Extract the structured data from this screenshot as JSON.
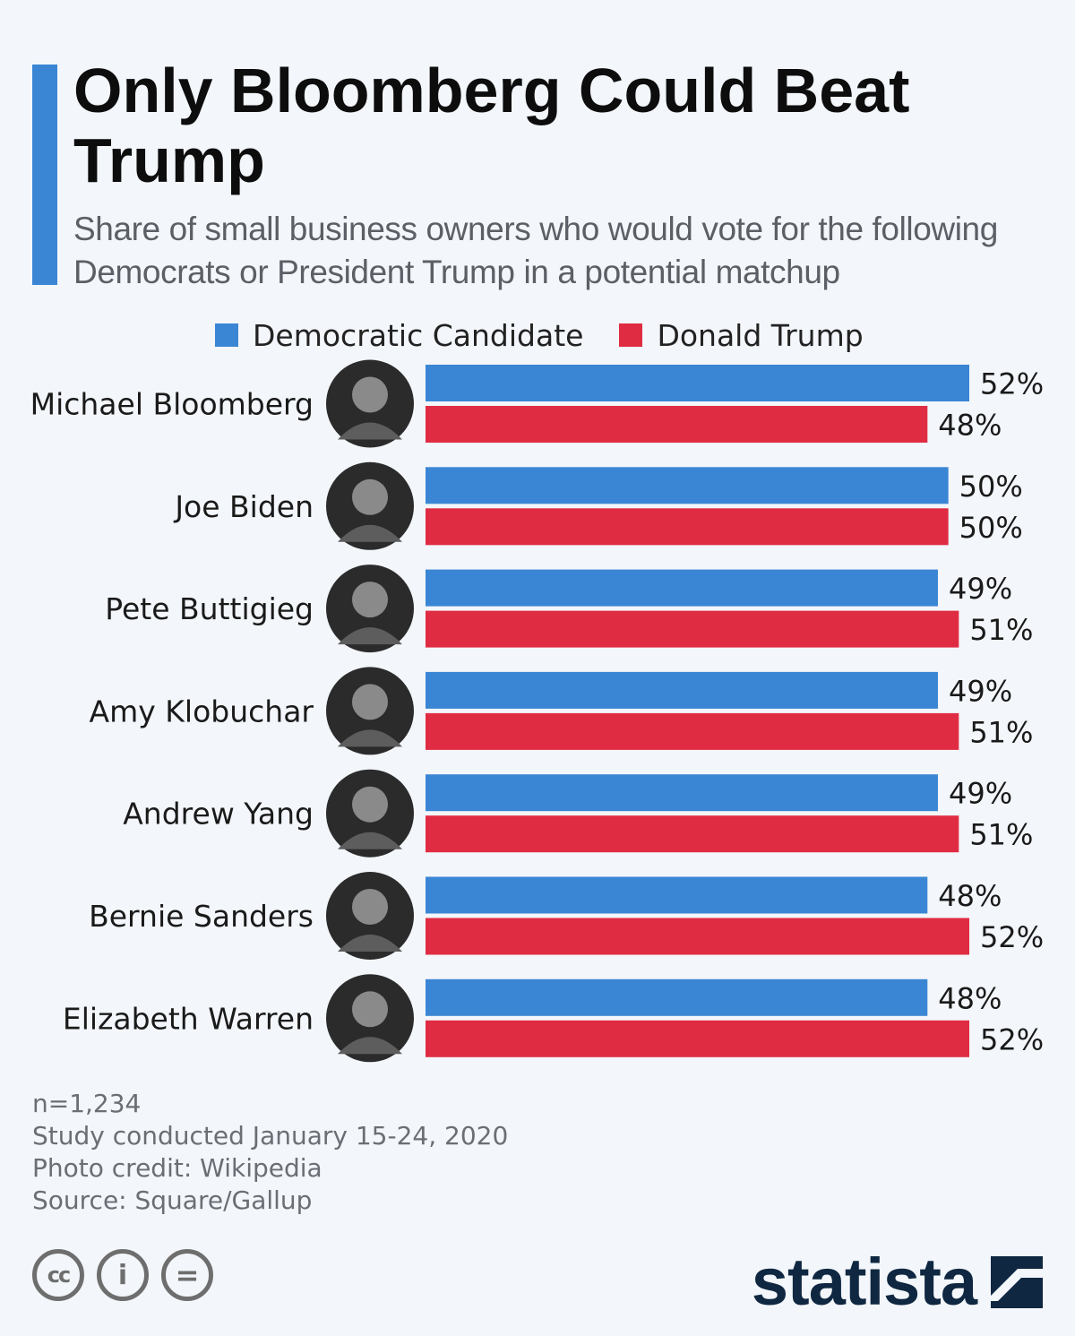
{
  "title": "Only Bloomberg Could Beat Trump",
  "subtitle": "Share of small business owners who would vote for the following Democrats or President Trump in a potential matchup",
  "colors": {
    "accent": "#3a86d4",
    "democrat": "#3a86d4",
    "trump": "#e02c43",
    "background": "#f3f6fa"
  },
  "chart_data": {
    "type": "bar",
    "orientation": "horizontal",
    "categories": [
      "Michael Bloomberg",
      "Joe Biden",
      "Pete Buttigieg",
      "Amy Klobuchar",
      "Andrew Yang",
      "Bernie Sanders",
      "Elizabeth Warren"
    ],
    "series": [
      {
        "name": "Democratic Candidate",
        "values": [
          52,
          50,
          49,
          49,
          49,
          48,
          48
        ],
        "value_labels": [
          "52%",
          "50%",
          "49%",
          "49%",
          "49%",
          "48%",
          "48%"
        ]
      },
      {
        "name": "Donald Trump",
        "values": [
          48,
          50,
          51,
          51,
          51,
          52,
          52
        ],
        "value_labels": [
          "48%",
          "50%",
          "51%",
          "51%",
          "51%",
          "52%",
          "52%"
        ]
      }
    ],
    "xlim": [
      0,
      52
    ],
    "legend": "top",
    "grid": false
  },
  "legend": {
    "democrat": "Democratic Candidate",
    "trump": "Donald Trump"
  },
  "footer": {
    "n": "n=1,234",
    "study": "Study conducted January 15-24, 2020",
    "photo_credit": "Photo credit: Wikipedia",
    "source": "Source: Square/Gallup"
  },
  "license_icons": [
    {
      "icon": "cc-icon",
      "glyph": "cc"
    },
    {
      "icon": "by-icon",
      "glyph": "i"
    },
    {
      "icon": "nd-icon",
      "glyph": "="
    }
  ],
  "brand": {
    "name": "statista"
  }
}
